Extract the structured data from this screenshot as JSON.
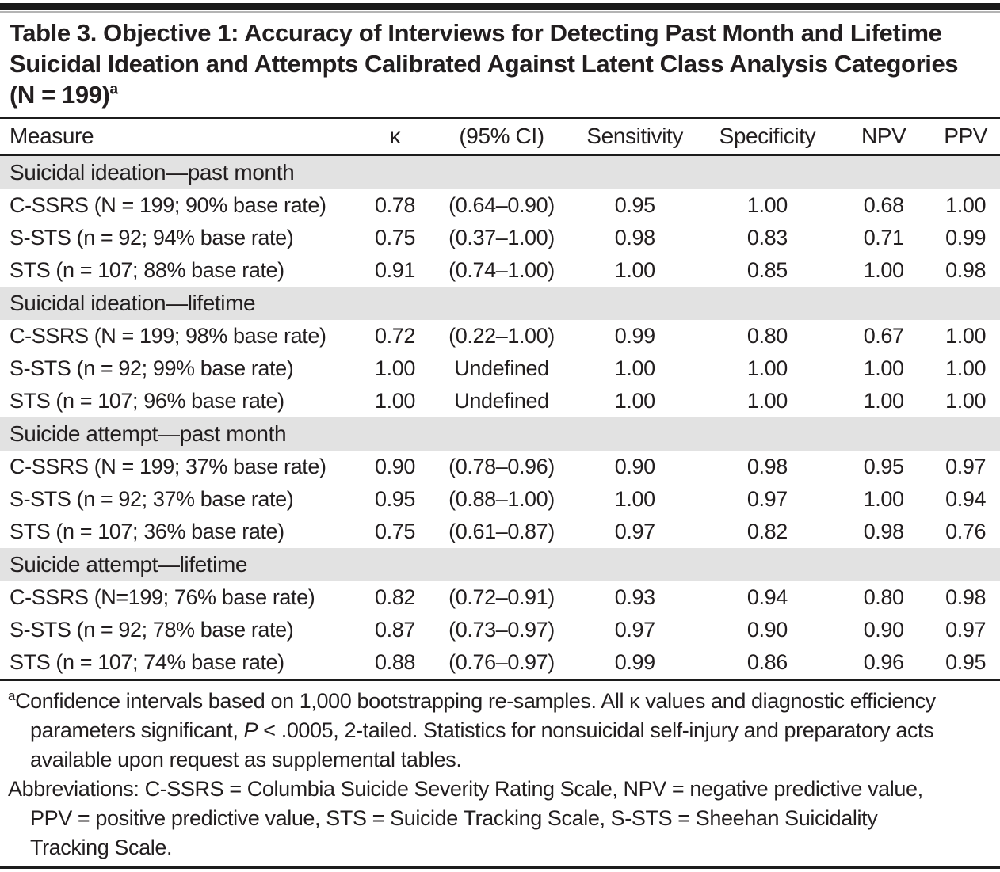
{
  "title": {
    "text": "Table 3. Objective 1: Accuracy of Interviews for Detecting Past Month and Lifetime Suicidal Ideation and Attempts Calibrated Against Latent Class Analysis Categories (N = 199)",
    "superscript": "a"
  },
  "columns": [
    "Measure",
    "κ",
    "(95% CI)",
    "Sensitivity",
    "Specificity",
    "NPV",
    "PPV"
  ],
  "table": {
    "sections": [
      {
        "header": "Suicidal ideation—past month",
        "rows": [
          {
            "measure": "C-SSRS (N = 199; 90% base rate)",
            "kappa": "0.78",
            "ci": "(0.64–0.90)",
            "sensitivity": "0.95",
            "specificity": "1.00",
            "npv": "0.68",
            "ppv": "1.00"
          },
          {
            "measure": "S-STS (n = 92; 94% base rate)",
            "kappa": "0.75",
            "ci": "(0.37–1.00)",
            "sensitivity": "0.98",
            "specificity": "0.83",
            "npv": "0.71",
            "ppv": "0.99"
          },
          {
            "measure": "STS (n = 107; 88% base rate)",
            "kappa": "0.91",
            "ci": "(0.74–1.00)",
            "sensitivity": "1.00",
            "specificity": "0.85",
            "npv": "1.00",
            "ppv": "0.98"
          }
        ]
      },
      {
        "header": "Suicidal ideation—lifetime",
        "rows": [
          {
            "measure": "C-SSRS (N = 199; 98% base rate)",
            "kappa": "0.72",
            "ci": "(0.22–1.00)",
            "sensitivity": "0.99",
            "specificity": "0.80",
            "npv": "0.67",
            "ppv": "1.00"
          },
          {
            "measure": "S-STS (n = 92; 99% base rate)",
            "kappa": "1.00",
            "ci": "Undefined",
            "sensitivity": "1.00",
            "specificity": "1.00",
            "npv": "1.00",
            "ppv": "1.00"
          },
          {
            "measure": "STS (n = 107; 96% base rate)",
            "kappa": "1.00",
            "ci": "Undefined",
            "sensitivity": "1.00",
            "specificity": "1.00",
            "npv": "1.00",
            "ppv": "1.00"
          }
        ]
      },
      {
        "header": "Suicide attempt—past month",
        "rows": [
          {
            "measure": "C-SSRS (N = 199; 37% base rate)",
            "kappa": "0.90",
            "ci": "(0.78–0.96)",
            "sensitivity": "0.90",
            "specificity": "0.98",
            "npv": "0.95",
            "ppv": "0.97"
          },
          {
            "measure": "S-STS (n = 92; 37% base rate)",
            "kappa": "0.95",
            "ci": "(0.88–1.00)",
            "sensitivity": "1.00",
            "specificity": "0.97",
            "npv": "1.00",
            "ppv": "0.94"
          },
          {
            "measure": "STS (n = 107; 36% base rate)",
            "kappa": "0.75",
            "ci": "(0.61–0.87)",
            "sensitivity": "0.97",
            "specificity": "0.82",
            "npv": "0.98",
            "ppv": "0.76"
          }
        ]
      },
      {
        "header": "Suicide attempt—lifetime",
        "rows": [
          {
            "measure": "C-SSRS (N=199; 76% base rate)",
            "kappa": "0.82",
            "ci": "(0.72–0.91)",
            "sensitivity": "0.93",
            "specificity": "0.94",
            "npv": "0.80",
            "ppv": "0.98"
          },
          {
            "measure": "S-STS (n = 92; 78% base rate)",
            "kappa": "0.87",
            "ci": "(0.73–0.97)",
            "sensitivity": "0.97",
            "specificity": "0.90",
            "npv": "0.90",
            "ppv": "0.97"
          },
          {
            "measure": "STS (n = 107; 74% base rate)",
            "kappa": "0.88",
            "ci": "(0.76–0.97)",
            "sensitivity": "0.99",
            "specificity": "0.86",
            "npv": "0.96",
            "ppv": "0.95"
          }
        ]
      }
    ]
  },
  "footnotes": {
    "a": {
      "sup": "a",
      "before_p": "Confidence intervals based on 1,000 bootstrapping re-samples. All κ values and diagnostic efficiency parameters significant, ",
      "p": "P",
      "after_p": " < .0005, 2-tailed. Statistics for nonsuicidal self-injury and preparatory acts available upon request as supplemental tables."
    },
    "abbreviations": "Abbreviations: C-SSRS = Columbia Suicide Severity Rating Scale, NPV = negative predictive value, PPV = positive predictive value, STS = Suicide Tracking Scale, S-STS = Sheehan Suicidality Tracking Scale."
  },
  "colors": {
    "section_band": "#e2e2e2",
    "text": "#221e1f",
    "rule": "#1c1c1c"
  }
}
